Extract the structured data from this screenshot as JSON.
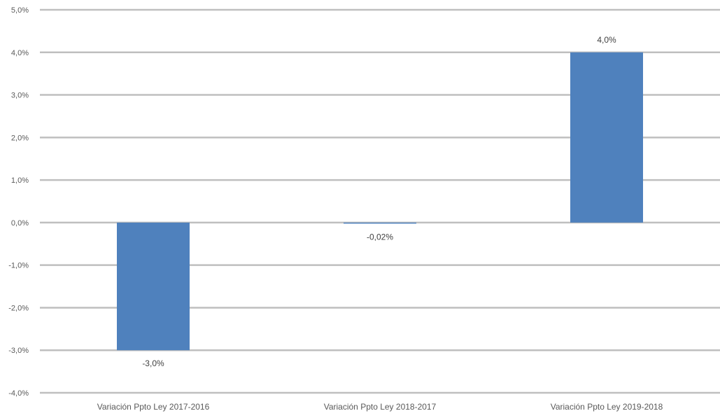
{
  "chart_data": {
    "type": "bar",
    "title": "",
    "xlabel": "",
    "ylabel": "",
    "categories": [
      "Variación Ppto Ley 2017-2016",
      "Variación Ppto Ley 2018-2017",
      "Variación Ppto Ley 2019-2018"
    ],
    "values": [
      -3.0,
      -0.02,
      4.0
    ],
    "data_labels": [
      "-3,0%",
      "-0,02%",
      "4,0%"
    ],
    "ylim": [
      -4.0,
      5.0
    ],
    "yticks": [
      5.0,
      4.0,
      3.0,
      2.0,
      1.0,
      0.0,
      -1.0,
      -2.0,
      -3.0,
      -4.0
    ],
    "ytick_labels": [
      "5,0%",
      "4,0%",
      "3,0%",
      "2,0%",
      "1,0%",
      "0,0%",
      "-1,0%",
      "-2,0%",
      "-3,0%",
      "-4,0%"
    ],
    "grid": true,
    "legend": "none",
    "bar_color": "#4f81bd",
    "grid_color": "#bfbfbf"
  }
}
